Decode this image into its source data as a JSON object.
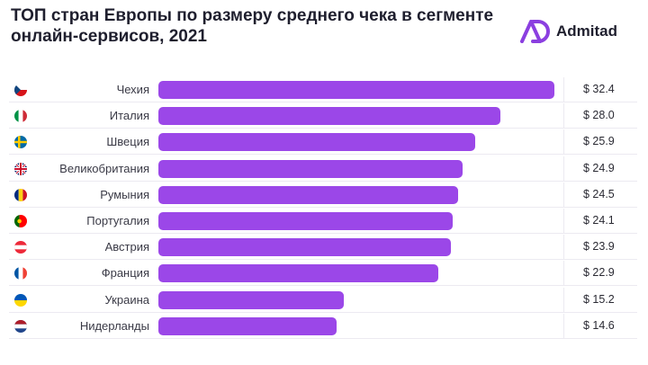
{
  "title": "ТОП стран Европы по размеру среднего чека в сегменте онлайн-сервисов, 2021",
  "brand": {
    "name": "Admitad",
    "color": "#8b3fe0"
  },
  "colors": {
    "bar": "#9b47e8",
    "text": "#1f1f2e"
  },
  "chart_data": {
    "type": "bar",
    "orientation": "horizontal",
    "title": "ТОП стран Европы по размеру среднего чека в сегменте онлайн-сервисов, 2021",
    "categories": [
      "Чехия",
      "Италия",
      "Швеция",
      "Великобритания",
      "Румыния",
      "Португалия",
      "Австрия",
      "Франция",
      "Украина",
      "Нидерланды"
    ],
    "values": [
      32.4,
      28.0,
      25.9,
      24.9,
      24.5,
      24.1,
      23.9,
      22.9,
      15.2,
      14.6
    ],
    "value_labels": [
      "$ 32.4",
      "$ 28.0",
      "$ 25.9",
      "$ 24.9",
      "$ 24.5",
      "$ 24.1",
      "$ 23.9",
      "$ 22.9",
      "$ 15.2",
      "$ 14.6"
    ],
    "flags": [
      "czech-flag-icon",
      "italy-flag-icon",
      "sweden-flag-icon",
      "uk-flag-icon",
      "romania-flag-icon",
      "portugal-flag-icon",
      "austria-flag-icon",
      "france-flag-icon",
      "ukraine-flag-icon",
      "netherlands-flag-icon"
    ],
    "grid": false,
    "legend": "none"
  }
}
